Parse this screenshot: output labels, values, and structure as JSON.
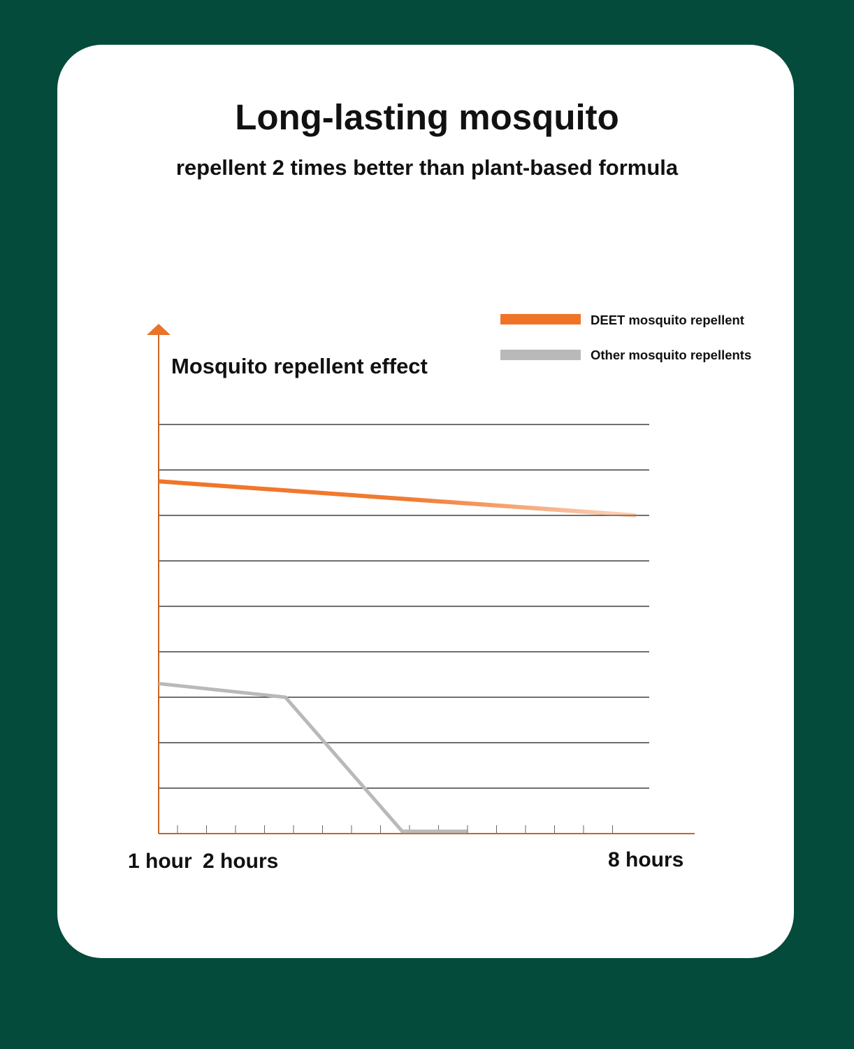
{
  "title": "Long-lasting mosquito",
  "subtitle": "repellent 2 times better than plant-based formula",
  "colors": {
    "background": "#044b3c",
    "card": "#ffffff",
    "deet": "#f07427",
    "other": "#b9b9b9",
    "axis": "#c5671f",
    "grid": "#1a1a1a"
  },
  "chart_data": {
    "type": "line",
    "ylabel": "Mosquito repellent effect",
    "x_tick_labels": [
      "1 hour",
      "2 hours",
      "8 hours"
    ],
    "x_tick_values": [
      1,
      2,
      8
    ],
    "xlim": [
      0.85,
      9.1
    ],
    "ylim": [
      0,
      9
    ],
    "grid": true,
    "gridlines": 9,
    "minor_ticks": 16,
    "legend_position": "top-right",
    "series": [
      {
        "name": "DEET mosquito repellent",
        "color": "#f07427",
        "x": [
          0.85,
          8.2
        ],
        "y": [
          7.75,
          7.0
        ]
      },
      {
        "name": "Other mosquito repellents",
        "color": "#b9b9b9",
        "x": [
          0.85,
          2.8,
          4.6,
          5.6
        ],
        "y": [
          3.3,
          3.0,
          0.05,
          0.05
        ]
      }
    ]
  }
}
